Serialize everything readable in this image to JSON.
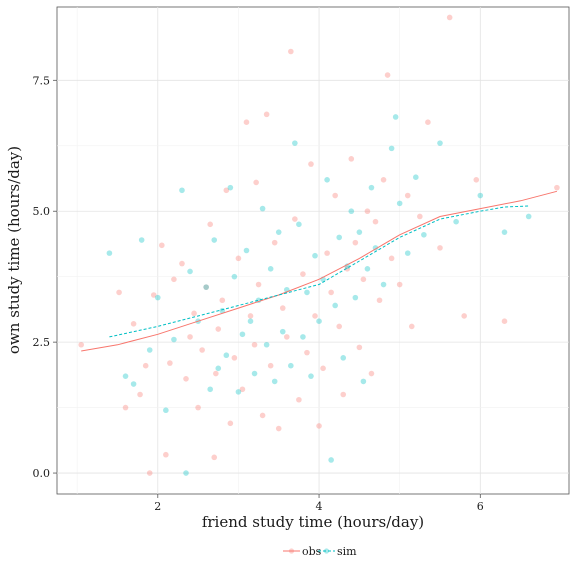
{
  "chart_data": {
    "type": "scatter",
    "xlabel": "friend study time (hours/day)",
    "ylabel": "own study time (hours/day)",
    "xlim": [
      0.75,
      7.1
    ],
    "ylim": [
      -0.4,
      8.9
    ],
    "x_ticks": [
      2,
      4,
      6
    ],
    "y_ticks": [
      0.0,
      2.5,
      5.0,
      7.5
    ],
    "x_tick_labels": [
      "2",
      "4",
      "6"
    ],
    "y_tick_labels": [
      "0.0",
      "2.5",
      "5.0",
      "7.5"
    ],
    "grid": true,
    "legend_position": "bottom",
    "series": [
      {
        "name": "obs",
        "color": "#f8766d",
        "points": [
          [
            1.05,
            2.45
          ],
          [
            1.52,
            3.45
          ],
          [
            1.6,
            1.25
          ],
          [
            1.7,
            2.85
          ],
          [
            1.78,
            1.5
          ],
          [
            1.85,
            2.05
          ],
          [
            1.9,
            0.0
          ],
          [
            1.95,
            3.4
          ],
          [
            2.05,
            4.35
          ],
          [
            2.1,
            0.35
          ],
          [
            2.15,
            2.1
          ],
          [
            2.2,
            3.7
          ],
          [
            2.3,
            4.0
          ],
          [
            2.35,
            1.8
          ],
          [
            2.4,
            2.6
          ],
          [
            2.45,
            3.05
          ],
          [
            2.5,
            1.25
          ],
          [
            2.55,
            2.35
          ],
          [
            2.6,
            3.55
          ],
          [
            2.65,
            4.75
          ],
          [
            2.7,
            0.3
          ],
          [
            2.72,
            1.9
          ],
          [
            2.75,
            2.75
          ],
          [
            2.8,
            3.3
          ],
          [
            2.85,
            5.4
          ],
          [
            2.9,
            0.95
          ],
          [
            2.95,
            2.2
          ],
          [
            3.0,
            4.1
          ],
          [
            3.05,
            1.6
          ],
          [
            3.1,
            6.7
          ],
          [
            3.15,
            3.0
          ],
          [
            3.2,
            2.45
          ],
          [
            3.22,
            5.55
          ],
          [
            3.25,
            3.6
          ],
          [
            3.3,
            1.1
          ],
          [
            3.35,
            6.85
          ],
          [
            3.4,
            2.05
          ],
          [
            3.45,
            4.4
          ],
          [
            3.5,
            0.85
          ],
          [
            3.55,
            3.15
          ],
          [
            3.6,
            2.6
          ],
          [
            3.65,
            8.05
          ],
          [
            3.7,
            4.85
          ],
          [
            3.75,
            1.4
          ],
          [
            3.8,
            3.8
          ],
          [
            3.85,
            2.3
          ],
          [
            3.9,
            5.9
          ],
          [
            3.95,
            3.0
          ],
          [
            4.0,
            0.9
          ],
          [
            4.05,
            2.0
          ],
          [
            4.1,
            4.2
          ],
          [
            4.15,
            3.45
          ],
          [
            4.2,
            5.3
          ],
          [
            4.25,
            2.8
          ],
          [
            4.3,
            1.5
          ],
          [
            4.35,
            3.9
          ],
          [
            4.4,
            6.0
          ],
          [
            4.45,
            4.4
          ],
          [
            4.5,
            2.4
          ],
          [
            4.55,
            3.7
          ],
          [
            4.6,
            5.0
          ],
          [
            4.65,
            1.9
          ],
          [
            4.7,
            4.8
          ],
          [
            4.75,
            3.3
          ],
          [
            4.8,
            5.6
          ],
          [
            4.85,
            7.6
          ],
          [
            4.9,
            4.1
          ],
          [
            5.0,
            3.6
          ],
          [
            5.1,
            5.3
          ],
          [
            5.15,
            2.8
          ],
          [
            5.25,
            4.9
          ],
          [
            5.35,
            6.7
          ],
          [
            5.5,
            4.3
          ],
          [
            5.62,
            8.7
          ],
          [
            5.8,
            3.0
          ],
          [
            5.95,
            5.6
          ],
          [
            6.3,
            2.9
          ],
          [
            6.95,
            5.45
          ]
        ],
        "trend": [
          [
            1.05,
            2.33
          ],
          [
            1.5,
            2.45
          ],
          [
            2.0,
            2.65
          ],
          [
            2.5,
            2.9
          ],
          [
            3.0,
            3.15
          ],
          [
            3.5,
            3.4
          ],
          [
            4.0,
            3.7
          ],
          [
            4.5,
            4.1
          ],
          [
            5.0,
            4.55
          ],
          [
            5.5,
            4.9
          ],
          [
            6.0,
            5.05
          ],
          [
            6.5,
            5.2
          ],
          [
            6.95,
            5.38
          ]
        ]
      },
      {
        "name": "sim",
        "color": "#00bfc4",
        "points": [
          [
            1.4,
            4.2
          ],
          [
            1.6,
            1.85
          ],
          [
            1.7,
            1.7
          ],
          [
            1.8,
            4.45
          ],
          [
            1.9,
            2.35
          ],
          [
            2.0,
            3.35
          ],
          [
            2.1,
            1.2
          ],
          [
            2.2,
            2.55
          ],
          [
            2.3,
            5.4
          ],
          [
            2.35,
            0.0
          ],
          [
            2.4,
            3.85
          ],
          [
            2.5,
            2.9
          ],
          [
            2.6,
            3.55
          ],
          [
            2.65,
            1.6
          ],
          [
            2.7,
            4.45
          ],
          [
            2.75,
            2.0
          ],
          [
            2.8,
            3.1
          ],
          [
            2.85,
            2.25
          ],
          [
            2.9,
            5.45
          ],
          [
            2.95,
            3.75
          ],
          [
            3.0,
            1.55
          ],
          [
            3.05,
            2.65
          ],
          [
            3.1,
            4.25
          ],
          [
            3.15,
            2.9
          ],
          [
            3.2,
            1.9
          ],
          [
            3.25,
            3.3
          ],
          [
            3.3,
            5.05
          ],
          [
            3.35,
            2.45
          ],
          [
            3.4,
            3.9
          ],
          [
            3.45,
            1.75
          ],
          [
            3.5,
            4.6
          ],
          [
            3.55,
            2.7
          ],
          [
            3.6,
            3.5
          ],
          [
            3.65,
            2.05
          ],
          [
            3.7,
            6.3
          ],
          [
            3.75,
            4.75
          ],
          [
            3.8,
            2.6
          ],
          [
            3.85,
            3.45
          ],
          [
            3.9,
            1.85
          ],
          [
            3.95,
            4.15
          ],
          [
            4.0,
            2.9
          ],
          [
            4.05,
            3.7
          ],
          [
            4.1,
            5.6
          ],
          [
            4.15,
            0.25
          ],
          [
            4.2,
            3.2
          ],
          [
            4.25,
            4.5
          ],
          [
            4.3,
            2.2
          ],
          [
            4.35,
            3.95
          ],
          [
            4.4,
            5.0
          ],
          [
            4.45,
            3.35
          ],
          [
            4.5,
            4.6
          ],
          [
            4.55,
            1.75
          ],
          [
            4.6,
            3.9
          ],
          [
            4.65,
            5.45
          ],
          [
            4.7,
            4.3
          ],
          [
            4.8,
            3.6
          ],
          [
            4.9,
            6.2
          ],
          [
            4.95,
            6.8
          ],
          [
            5.0,
            5.15
          ],
          [
            5.1,
            4.2
          ],
          [
            5.2,
            5.65
          ],
          [
            5.3,
            4.55
          ],
          [
            5.5,
            6.3
          ],
          [
            5.7,
            4.8
          ],
          [
            6.0,
            5.3
          ],
          [
            6.3,
            4.6
          ],
          [
            6.6,
            4.9
          ]
        ],
        "trend": [
          [
            1.4,
            2.6
          ],
          [
            2.0,
            2.8
          ],
          [
            2.5,
            3.0
          ],
          [
            3.0,
            3.2
          ],
          [
            3.5,
            3.4
          ],
          [
            4.0,
            3.6
          ],
          [
            4.5,
            4.05
          ],
          [
            5.0,
            4.5
          ],
          [
            5.5,
            4.85
          ],
          [
            6.0,
            5.0
          ],
          [
            6.3,
            5.08
          ],
          [
            6.6,
            5.1
          ]
        ]
      }
    ]
  }
}
